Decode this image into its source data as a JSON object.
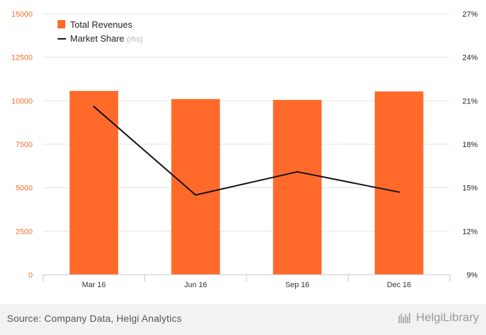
{
  "chart_data": {
    "type": "bar",
    "categories": [
      "Mar 16",
      "Jun 16",
      "Sep 16",
      "Dec 16"
    ],
    "series": [
      {
        "name": "Total Revenues",
        "type": "bar",
        "axis": "left",
        "values": [
          10570,
          10100,
          10050,
          10540
        ]
      },
      {
        "name": "Market Share",
        "type": "line",
        "axis": "right",
        "values": [
          20.6,
          14.5,
          16.1,
          14.7
        ]
      }
    ],
    "legend": {
      "position": "top-left",
      "items": [
        {
          "label": "Total Revenues",
          "suffix": ""
        },
        {
          "label": "Market Share",
          "suffix": "(rhs)"
        }
      ]
    },
    "y_left": {
      "min": 0,
      "max": 15000,
      "ticks": [
        "0",
        "2500",
        "5000",
        "7500",
        "10000",
        "12500",
        "15000"
      ]
    },
    "y_right": {
      "min": 9,
      "max": 27,
      "ticks": [
        "9%",
        "12%",
        "15%",
        "18%",
        "21%",
        "24%",
        "27%"
      ]
    },
    "grid": true,
    "colors": {
      "bar": "#ff6a2b",
      "line": "#111111",
      "left_axis_text": "#ff6a2b",
      "right_axis_text": "#222222",
      "grid": "#e6e6e6"
    }
  },
  "footer": {
    "source": "Source: Company Data, Helgi Analytics",
    "logo_text": "HelgiLibrary"
  }
}
